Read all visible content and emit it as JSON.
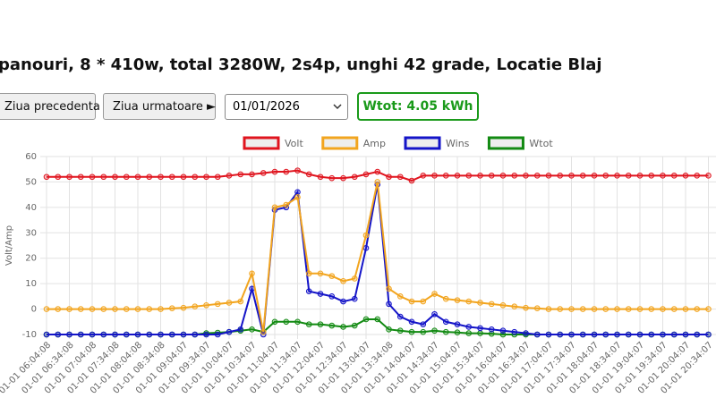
{
  "header": {
    "title": "panouri, 8 * 410w, total 3280W, 2s4p, unghi 42 grade, Locatie Blaj"
  },
  "controls": {
    "prev": "Ziua precedenta",
    "next": "Ziua urmatoare ►",
    "date": "01/01/2026",
    "total": "Wtot: 4.05 kWh"
  },
  "chart_data": {
    "type": "line",
    "y_label": "Volt/Amp",
    "categories": [
      "01-01 06:04:08",
      null,
      "01-01 06:34:08",
      null,
      "01-01 07:04:08",
      null,
      "01-01 07:34:08",
      null,
      "01-01 08:04:08",
      null,
      "01-01 08:34:08",
      null,
      "01-01 09:04:07",
      null,
      "01-01 09:34:07",
      null,
      "01-01 10:04:07",
      null,
      "01-01 10:34:07",
      null,
      "01-01 11:04:07",
      null,
      "01-01 11:34:07",
      null,
      "01-01 12:04:07",
      null,
      "01-01 12:34:07",
      null,
      "01-01 13:04:07",
      null,
      "01-01 13:34:08",
      null,
      "01-01 14:04:07",
      null,
      "01-01 14:34:07",
      null,
      "01-01 15:04:07",
      null,
      "01-01 15:34:07",
      null,
      "01-01 16:04:07",
      null,
      "01-01 16:34:07",
      null,
      "01-01 17:04:07",
      null,
      "01-01 17:34:07",
      null,
      "01-01 18:04:07",
      null,
      "01-01 18:34:07",
      null,
      "01-01 19:04:07",
      null,
      "01-01 19:34:07",
      null,
      "01-01 20:04:07",
      null,
      "01-01 20:34:07"
    ],
    "series": [
      {
        "name": "Volt",
        "color": "#e0141e",
        "values": [
          52,
          52,
          52,
          52,
          52,
          52,
          52,
          52,
          52,
          52,
          52,
          52,
          52,
          52,
          52,
          52,
          52.5,
          53,
          53,
          53.5,
          54,
          54,
          54.5,
          53,
          52,
          51.5,
          51.5,
          52,
          53,
          54,
          52,
          52,
          50.5,
          52.5,
          52.5,
          52.5,
          52.5,
          52.5,
          52.5,
          52.5,
          52.5,
          52.5,
          52.5,
          52.5,
          52.5,
          52.5,
          52.5,
          52.5,
          52.5,
          52.5,
          52.5,
          52.5,
          52.5,
          52.5,
          52.5,
          52.5,
          52.5,
          52.5,
          52.5
        ]
      },
      {
        "name": "Amp",
        "color": "#f2a51f",
        "values": [
          0,
          0,
          0,
          0,
          0,
          0,
          0,
          0,
          0,
          0,
          0,
          0.3,
          0.5,
          1,
          1.5,
          2,
          2.5,
          3,
          14,
          -9,
          40,
          41,
          44,
          14,
          14,
          13,
          11,
          12,
          29,
          50,
          8,
          5,
          3,
          3,
          6,
          4,
          3.5,
          3,
          2.5,
          2,
          1.5,
          1,
          0.5,
          0.3,
          0,
          0,
          0,
          0,
          0,
          0,
          0,
          0,
          0,
          0,
          0,
          0,
          0,
          0,
          0
        ]
      },
      {
        "name": "Wins",
        "color": "#1414c8",
        "values": [
          -10,
          -10,
          -10,
          -10,
          -10,
          -10,
          -10,
          -10,
          -10,
          -10,
          -10,
          -10,
          -10,
          -10,
          -10,
          -10,
          -9,
          -8,
          8,
          -10,
          39,
          40,
          46,
          7,
          6,
          5,
          3,
          4,
          24,
          49,
          2,
          -3,
          -5,
          -6,
          -2,
          -5,
          -6,
          -7,
          -7.5,
          -8,
          -8.5,
          -9,
          -9.5,
          -10,
          -10,
          -10,
          -10,
          -10,
          -10,
          -10,
          -10,
          -10,
          -10,
          -10,
          -10,
          -10,
          -10,
          -10,
          -10
        ]
      },
      {
        "name": "Wtot",
        "color": "#128a12",
        "values": [
          -10,
          -10,
          -10,
          -10,
          -10,
          -10,
          -10,
          -10,
          -10,
          -10,
          -10,
          -10,
          -10,
          -10,
          -9.5,
          -9.3,
          -9,
          -8.5,
          -8,
          -9,
          -5,
          -5,
          -5,
          -6,
          -6,
          -6.5,
          -7,
          -6.5,
          -4,
          -4,
          -8,
          -8.5,
          -9,
          -9,
          -8.5,
          -9,
          -9.2,
          -9.5,
          -9.5,
          -9.7,
          -10,
          -10,
          -10,
          -10,
          -10,
          -10,
          -10,
          -10,
          -10,
          -10,
          -10,
          -10,
          -10,
          -10,
          -10,
          -10,
          -10,
          -10,
          -10
        ]
      }
    ],
    "ylim": [
      -10,
      60
    ],
    "yticks": [
      -10,
      0,
      10,
      20,
      30,
      40,
      50,
      60
    ],
    "grid": true,
    "legend": "top"
  }
}
